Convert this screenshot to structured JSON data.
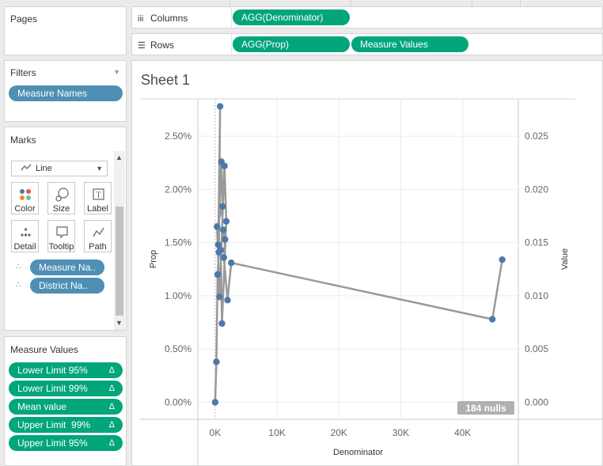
{
  "left_panel": {
    "pages": {
      "title": "Pages"
    },
    "filters": {
      "title": "Filters",
      "pills": [
        "Measure Names"
      ]
    },
    "marks": {
      "title": "Marks",
      "mark_type": "Line",
      "buttons": {
        "color": "Color",
        "size": "Size",
        "label": "Label",
        "detail": "Detail",
        "tooltip": "Tooltip",
        "path": "Path"
      },
      "fields": [
        "Measure Na..",
        "District Na.."
      ]
    },
    "measure_values": {
      "title": "Measure Values",
      "pills": [
        "Lower Limit 95%",
        "Lower Limit 99%",
        "Mean value",
        "Upper Limit  99%",
        "Upper Limit 95%"
      ],
      "delta": "Δ"
    }
  },
  "shelves": {
    "columns": {
      "label": "Columns",
      "pills": [
        "AGG(Denominator)"
      ]
    },
    "rows": {
      "label": "Rows",
      "pills": [
        "AGG(Prop)",
        "Measure Values"
      ]
    }
  },
  "sheet": {
    "title": "Sheet 1",
    "nulls_badge": "184 nulls"
  },
  "colors": {
    "blue_pill": "#4f8fb3",
    "green_pill": "#03a57b",
    "line": "#999999",
    "point": "#4e79a7"
  },
  "chart_data": {
    "type": "line",
    "xlabel": "Denominator",
    "ylabel_left": "Prop",
    "ylabel_right": "Value",
    "xlim": [
      -2800,
      49000
    ],
    "ylim_left": [
      -0.0016,
      0.0285
    ],
    "ylim_right": [
      -0.0016,
      0.0285
    ],
    "x_ticks": [
      0,
      10000,
      20000,
      30000,
      40000
    ],
    "x_tick_labels": [
      "0K",
      "10K",
      "20K",
      "30K",
      "40K"
    ],
    "y_left_ticks": [
      0,
      0.005,
      0.01,
      0.015,
      0.02,
      0.025
    ],
    "y_left_tick_labels": [
      "0.00%",
      "0.50%",
      "1.00%",
      "1.50%",
      "2.00%",
      "2.50%"
    ],
    "y_right_ticks": [
      0,
      0.005,
      0.01,
      0.015,
      0.02,
      0.025
    ],
    "y_right_tick_labels": [
      "0.000",
      "0.005",
      "0.010",
      "0.015",
      "0.020",
      "0.025"
    ],
    "grid": true,
    "series": [
      {
        "name": "Prop",
        "x": [
          0,
          200,
          400,
          600,
          800,
          500,
          1000,
          1200,
          300,
          700,
          1500,
          1800,
          1100,
          900,
          1300,
          1600,
          1400,
          2000,
          2600,
          44800,
          46400
        ],
        "y": [
          0.0,
          0.0038,
          0.012,
          0.0141,
          0.0278,
          0.0148,
          0.0226,
          0.0184,
          0.0165,
          0.0099,
          0.0222,
          0.017,
          0.0074,
          0.0143,
          0.0162,
          0.0153,
          0.0136,
          0.0096,
          0.0131,
          0.0078,
          0.0134
        ]
      }
    ]
  }
}
